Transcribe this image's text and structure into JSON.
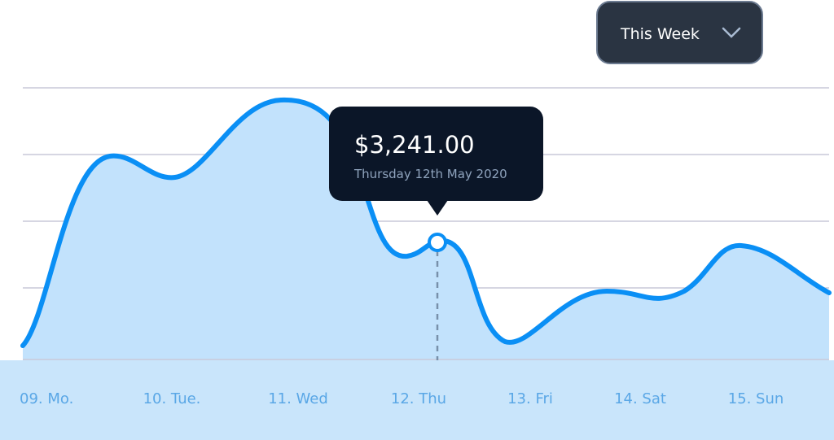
{
  "dropdown": {
    "label": "This Week"
  },
  "tooltip": {
    "value": "$3,241.00",
    "date": "Thursday 12th May 2020"
  },
  "x_labels": [
    "09. Mo.",
    "10. Tue.",
    "11. Wed",
    "12. Thu",
    "13. Fri",
    "14. Sat",
    "15. Sun"
  ]
}
